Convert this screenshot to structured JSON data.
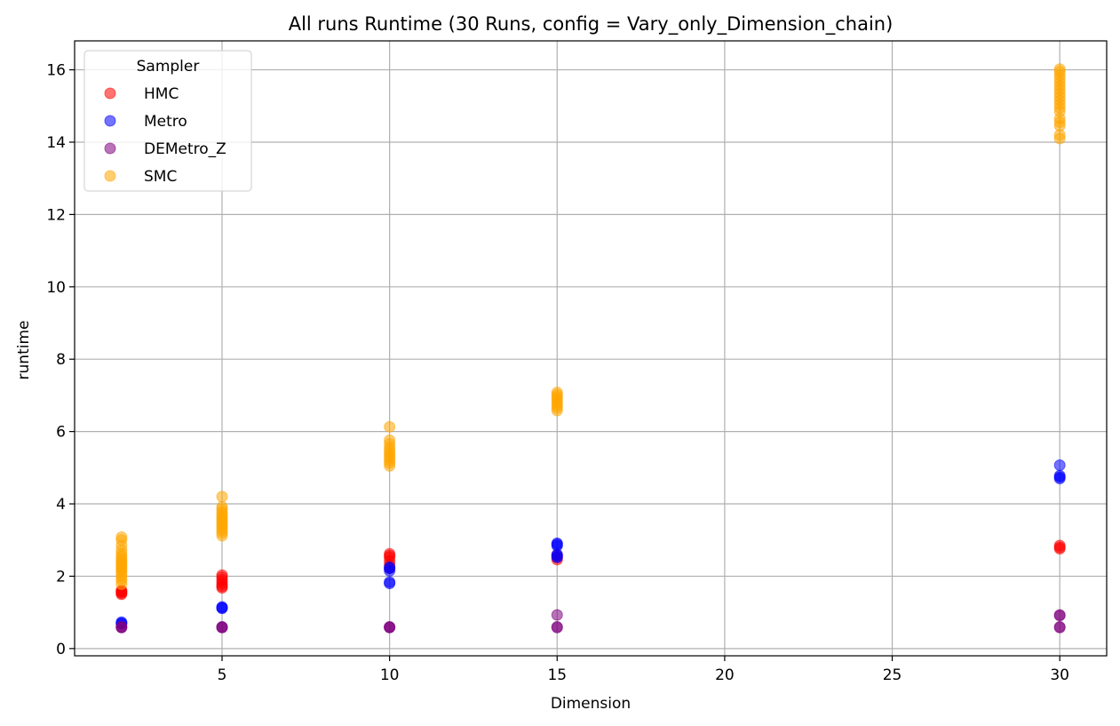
{
  "chart_data": {
    "type": "scatter",
    "title": "All runs Runtime (30 Runs, config = Vary_only_Dimension_chain)",
    "xlabel": "Dimension",
    "ylabel": "runtime",
    "xlim": [
      0.6,
      31.4
    ],
    "ylim": [
      -0.2,
      16.8
    ],
    "xticks": [
      5,
      10,
      15,
      20,
      25,
      30
    ],
    "yticks": [
      0,
      2,
      4,
      6,
      8,
      10,
      12,
      14,
      16
    ],
    "grid": true,
    "legend_title": "Sampler",
    "legend_position": "top-left",
    "series": [
      {
        "name": "HMC",
        "color": "#ff0000",
        "points": [
          [
            2,
            1.5
          ],
          [
            2,
            1.53
          ],
          [
            2,
            1.56
          ],
          [
            2,
            1.58
          ],
          [
            2,
            1.61
          ],
          [
            5,
            1.68
          ],
          [
            5,
            1.72
          ],
          [
            5,
            1.77
          ],
          [
            5,
            1.83
          ],
          [
            5,
            1.9
          ],
          [
            5,
            1.97
          ],
          [
            5,
            2.03
          ],
          [
            10,
            2.22
          ],
          [
            10,
            2.32
          ],
          [
            10,
            2.42
          ],
          [
            10,
            2.52
          ],
          [
            10,
            2.57
          ],
          [
            10,
            2.62
          ],
          [
            15,
            2.46
          ],
          [
            15,
            2.52
          ],
          [
            15,
            2.58
          ],
          [
            30,
            2.76
          ],
          [
            30,
            2.8
          ],
          [
            30,
            2.85
          ]
        ]
      },
      {
        "name": "Metro",
        "color": "#0000ff",
        "points": [
          [
            2,
            0.68
          ],
          [
            2,
            0.7
          ],
          [
            2,
            0.73
          ],
          [
            5,
            1.11
          ],
          [
            5,
            1.13
          ],
          [
            5,
            1.15
          ],
          [
            10,
            1.8
          ],
          [
            10,
            1.84
          ],
          [
            10,
            2.15
          ],
          [
            10,
            2.22
          ],
          [
            10,
            2.25
          ],
          [
            15,
            2.52
          ],
          [
            15,
            2.56
          ],
          [
            15,
            2.6
          ],
          [
            15,
            2.84
          ],
          [
            15,
            2.88
          ],
          [
            15,
            2.91
          ],
          [
            30,
            4.7
          ],
          [
            30,
            4.74
          ],
          [
            30,
            4.78
          ],
          [
            30,
            5.07
          ]
        ]
      },
      {
        "name": "DEMetro_Z",
        "color": "#800080",
        "points": [
          [
            2,
            0.58
          ],
          [
            2,
            0.59
          ],
          [
            2,
            0.6
          ],
          [
            5,
            0.58
          ],
          [
            5,
            0.59
          ],
          [
            5,
            0.6
          ],
          [
            10,
            0.58
          ],
          [
            10,
            0.59
          ],
          [
            10,
            0.6
          ],
          [
            15,
            0.58
          ],
          [
            15,
            0.6
          ],
          [
            15,
            0.93
          ],
          [
            30,
            0.58
          ],
          [
            30,
            0.6
          ],
          [
            30,
            0.91
          ],
          [
            30,
            0.93
          ]
        ]
      },
      {
        "name": "SMC",
        "color": "#ffa500",
        "points": [
          [
            2,
            1.78
          ],
          [
            2,
            1.88
          ],
          [
            2,
            1.95
          ],
          [
            2,
            2.03
          ],
          [
            2,
            2.1
          ],
          [
            2,
            2.17
          ],
          [
            2,
            2.22
          ],
          [
            2,
            2.27
          ],
          [
            2,
            2.32
          ],
          [
            2,
            2.37
          ],
          [
            2,
            2.42
          ],
          [
            2,
            2.48
          ],
          [
            2,
            2.55
          ],
          [
            2,
            2.62
          ],
          [
            2,
            2.72
          ],
          [
            2,
            2.85
          ],
          [
            2,
            3.0
          ],
          [
            2,
            3.08
          ],
          [
            5,
            3.12
          ],
          [
            5,
            3.2
          ],
          [
            5,
            3.27
          ],
          [
            5,
            3.33
          ],
          [
            5,
            3.4
          ],
          [
            5,
            3.46
          ],
          [
            5,
            3.52
          ],
          [
            5,
            3.58
          ],
          [
            5,
            3.64
          ],
          [
            5,
            3.7
          ],
          [
            5,
            3.77
          ],
          [
            5,
            3.85
          ],
          [
            5,
            3.92
          ],
          [
            5,
            4.2
          ],
          [
            10,
            5.05
          ],
          [
            10,
            5.13
          ],
          [
            10,
            5.2
          ],
          [
            10,
            5.27
          ],
          [
            10,
            5.34
          ],
          [
            10,
            5.41
          ],
          [
            10,
            5.48
          ],
          [
            10,
            5.56
          ],
          [
            10,
            5.66
          ],
          [
            10,
            5.76
          ],
          [
            10,
            6.13
          ],
          [
            15,
            6.58
          ],
          [
            15,
            6.65
          ],
          [
            15,
            6.72
          ],
          [
            15,
            6.78
          ],
          [
            15,
            6.84
          ],
          [
            15,
            6.9
          ],
          [
            15,
            6.96
          ],
          [
            15,
            7.02
          ],
          [
            15,
            7.08
          ],
          [
            30,
            14.1
          ],
          [
            30,
            14.2
          ],
          [
            30,
            14.45
          ],
          [
            30,
            14.55
          ],
          [
            30,
            14.65
          ],
          [
            30,
            14.85
          ],
          [
            30,
            14.95
          ],
          [
            30,
            15.05
          ],
          [
            30,
            15.15
          ],
          [
            30,
            15.25
          ],
          [
            30,
            15.35
          ],
          [
            30,
            15.45
          ],
          [
            30,
            15.55
          ],
          [
            30,
            15.65
          ],
          [
            30,
            15.75
          ],
          [
            30,
            15.85
          ],
          [
            30,
            15.95
          ],
          [
            30,
            16.02
          ]
        ]
      }
    ]
  }
}
